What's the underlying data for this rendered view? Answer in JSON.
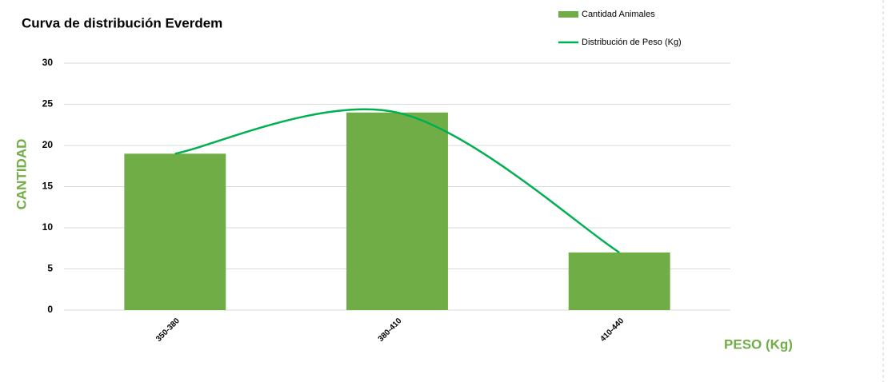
{
  "chart_data": {
    "type": "bar",
    "title": "Curva de distribución Everdem",
    "x_label": "PESO (Kg)",
    "y_label": "CANTIDAD",
    "categories": [
      "350-380",
      "380-410",
      "410-440"
    ],
    "series": [
      {
        "name": "Cantidad Animales",
        "type": "bar",
        "color": "#70ad47",
        "values": [
          19,
          24,
          7
        ]
      },
      {
        "name": "Distribución de Peso (Kg)",
        "type": "line",
        "color": "#00b050",
        "values": [
          19,
          24,
          7
        ]
      }
    ],
    "ylim": [
      0,
      30
    ],
    "yticks": [
      0,
      5,
      10,
      15,
      20,
      25,
      30
    ],
    "grid": true,
    "legend": "top-right"
  }
}
